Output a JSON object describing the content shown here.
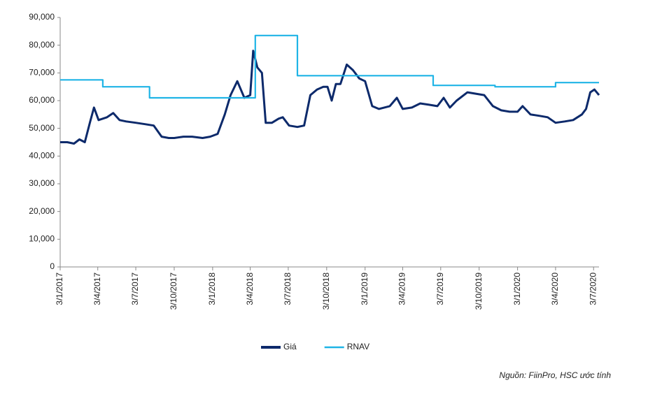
{
  "chart_data": {
    "type": "line",
    "series": [
      {
        "name": "Giá",
        "color": "#0d2a6b",
        "x": [
          "2017-01-03",
          "2017-01-20",
          "2017-02-05",
          "2017-02-18",
          "2017-03-03",
          "2017-03-15",
          "2017-03-25",
          "2017-04-05",
          "2017-04-25",
          "2017-05-10",
          "2017-05-25",
          "2017-06-10",
          "2017-07-03",
          "2017-07-25",
          "2017-08-15",
          "2017-09-03",
          "2017-09-20",
          "2017-10-03",
          "2017-10-25",
          "2017-11-15",
          "2017-12-10",
          "2017-12-28",
          "2018-01-15",
          "2018-02-01",
          "2018-02-15",
          "2018-03-03",
          "2018-03-20",
          "2018-04-03",
          "2018-04-10",
          "2018-04-20",
          "2018-05-01",
          "2018-05-10",
          "2018-05-25",
          "2018-06-10",
          "2018-06-20",
          "2018-07-05",
          "2018-07-25",
          "2018-08-10",
          "2018-08-25",
          "2018-09-10",
          "2018-09-25",
          "2018-10-05",
          "2018-10-15",
          "2018-10-25",
          "2018-11-05",
          "2018-11-20",
          "2018-12-05",
          "2018-12-20",
          "2019-01-03",
          "2019-01-20",
          "2019-02-05",
          "2019-03-03",
          "2019-03-20",
          "2019-04-03",
          "2019-04-25",
          "2019-05-15",
          "2019-06-05",
          "2019-06-25",
          "2019-07-10",
          "2019-07-25",
          "2019-08-10",
          "2019-09-05",
          "2019-09-25",
          "2019-10-15",
          "2019-11-05",
          "2019-11-25",
          "2019-12-15",
          "2020-01-03",
          "2020-01-15",
          "2020-02-03",
          "2020-02-25",
          "2020-03-15",
          "2020-04-03",
          "2020-04-25",
          "2020-05-15",
          "2020-06-05",
          "2020-06-15",
          "2020-06-25",
          "2020-07-05",
          "2020-07-16"
        ],
        "values": [
          45000,
          45000,
          44500,
          46000,
          45000,
          52000,
          57500,
          53000,
          54000,
          55500,
          53000,
          52500,
          52000,
          51500,
          51000,
          47000,
          46500,
          46500,
          47000,
          47000,
          46500,
          47000,
          48000,
          55000,
          62000,
          67000,
          61000,
          62000,
          78000,
          72000,
          70000,
          52000,
          52000,
          53500,
          54000,
          51000,
          50500,
          51000,
          62000,
          64000,
          65000,
          65000,
          60000,
          66000,
          66000,
          73000,
          71000,
          68000,
          67000,
          58000,
          57000,
          58000,
          61000,
          57000,
          57500,
          59000,
          58500,
          58000,
          61000,
          57500,
          60000,
          63000,
          62500,
          62000,
          58000,
          56500,
          56000,
          56000,
          58000,
          55000,
          54500,
          54000,
          52000,
          52500,
          53000,
          55000,
          57000,
          63000,
          64000,
          62000
        ]
      },
      {
        "name": "RNAV",
        "color": "#1fb4e6",
        "x": [
          "2017-01-03",
          "2017-04-15",
          "2017-04-15",
          "2017-08-05",
          "2017-08-05",
          "2018-04-15",
          "2018-04-15",
          "2018-07-25",
          "2018-07-25",
          "2019-06-15",
          "2019-06-15",
          "2019-11-10",
          "2019-11-10",
          "2020-04-03",
          "2020-04-03",
          "2020-07-16"
        ],
        "values": [
          67500,
          67500,
          65000,
          65000,
          61000,
          61000,
          83500,
          83500,
          69000,
          69000,
          65500,
          65500,
          65000,
          65000,
          66500,
          66500
        ]
      }
    ],
    "xlim": [
      "2017-01-03",
      "2020-07-16"
    ],
    "xticks": [
      {
        "value": "2017-01-03",
        "label": "3/1/2017"
      },
      {
        "value": "2017-04-03",
        "label": "3/4/2017"
      },
      {
        "value": "2017-07-03",
        "label": "3/7/2017"
      },
      {
        "value": "2017-10-03",
        "label": "3/10/2017"
      },
      {
        "value": "2018-01-03",
        "label": "3/1/2018"
      },
      {
        "value": "2018-04-03",
        "label": "3/4/2018"
      },
      {
        "value": "2018-07-03",
        "label": "3/7/2018"
      },
      {
        "value": "2018-10-03",
        "label": "3/10/2018"
      },
      {
        "value": "2019-01-03",
        "label": "3/1/2019"
      },
      {
        "value": "2019-04-03",
        "label": "3/4/2019"
      },
      {
        "value": "2019-07-03",
        "label": "3/7/2019"
      },
      {
        "value": "2019-10-03",
        "label": "3/10/2019"
      },
      {
        "value": "2020-01-03",
        "label": "3/1/2020"
      },
      {
        "value": "2020-04-03",
        "label": "3/4/2020"
      },
      {
        "value": "2020-07-03",
        "label": "3/7/2020"
      }
    ],
    "ylim": [
      0,
      90000
    ],
    "yticks": [
      0,
      {
        "value": 10000,
        "label": "10,000"
      },
      {
        "value": 20000,
        "label": "20,000"
      },
      {
        "value": 30000,
        "label": "30,000"
      },
      {
        "value": 40000,
        "label": "40,000"
      },
      {
        "value": 50000,
        "label": "50,000"
      },
      {
        "value": 60000,
        "label": "60,000"
      },
      {
        "value": 70000,
        "label": "70,000"
      },
      {
        "value": 80000,
        "label": "80,000"
      },
      {
        "value": 90000,
        "label": "90,000"
      }
    ],
    "grid": false,
    "legend": "bottom",
    "source": "Nguồn: FiinPro, HSC ước tính"
  }
}
